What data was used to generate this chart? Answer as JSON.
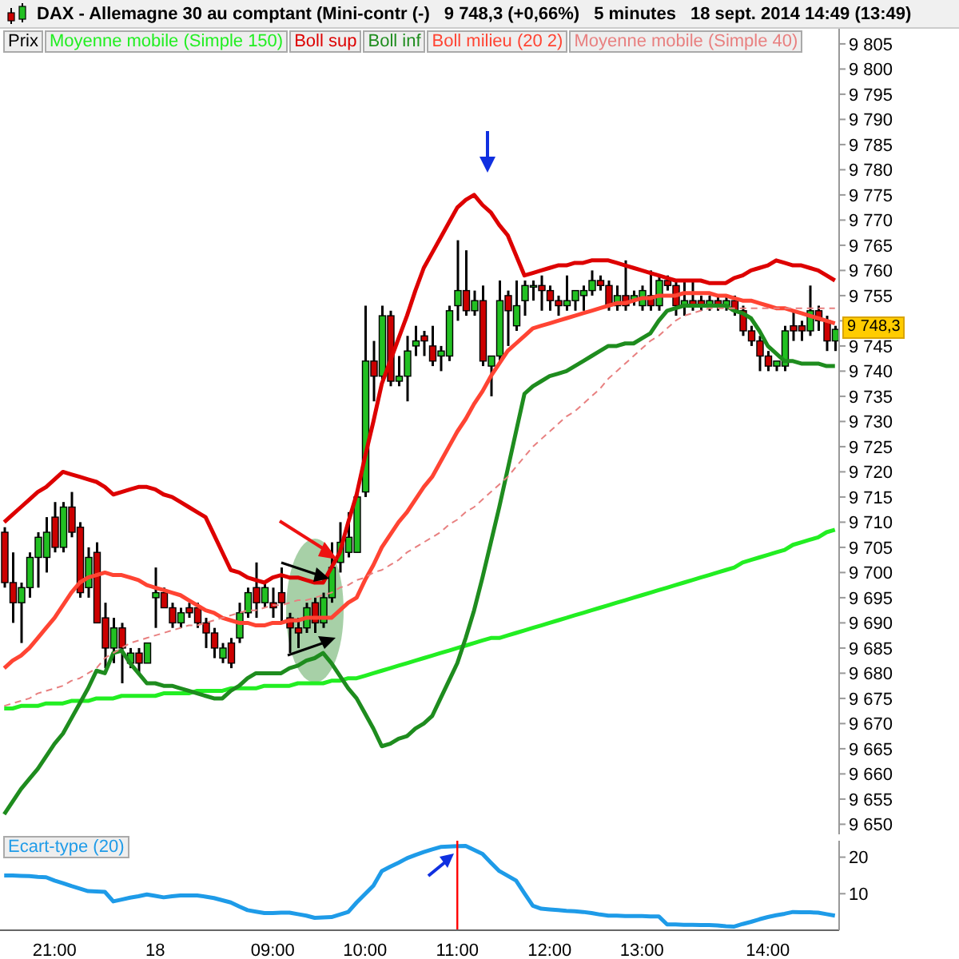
{
  "chart_data": [
    {
      "type": "candlestick",
      "title": "DAX - Allemagne 30 au comptant (Mini-contr (-)",
      "subtitle": "9 748,3 (+0,66%)",
      "annotations": [
        "5 minutes",
        "18 sept. 2014 14:49 (13:49)",
        {
          "text": "9 748,3",
          "y": 9748.3
        }
      ],
      "legend": "top left",
      "categories": [
        null,
        null,
        null,
        null,
        null,
        null,
        null,
        null,
        null,
        null,
        null,
        null,
        null,
        null,
        null,
        null,
        null,
        null,
        null,
        null,
        null,
        null,
        null,
        null,
        null,
        null,
        null,
        null,
        null,
        null,
        null,
        null,
        null,
        null,
        null,
        null,
        null,
        null,
        null,
        null,
        null,
        null,
        null,
        null,
        null,
        null,
        null,
        null,
        null,
        null,
        null,
        null,
        null,
        null,
        null,
        null,
        null,
        null,
        null,
        null,
        null,
        null,
        null,
        null,
        null,
        null,
        null,
        null,
        null,
        null,
        null,
        null,
        null,
        null,
        null,
        null,
        null,
        null,
        null,
        null,
        null,
        null,
        null,
        null,
        null,
        null,
        null,
        null,
        null,
        null,
        null,
        null,
        null,
        null,
        null,
        null,
        null,
        null,
        null,
        null
      ],
      "ylim": [
        9648,
        9808
      ],
      "yticks": [
        {
          "value": 9650,
          "label": "9 650"
        },
        {
          "value": 9655,
          "label": "9 655"
        },
        {
          "value": 9660,
          "label": "9 660"
        },
        {
          "value": 9665,
          "label": "9 665"
        },
        {
          "value": 9670,
          "label": "9 670"
        },
        {
          "value": 9675,
          "label": "9 675"
        },
        {
          "value": 9680,
          "label": "9 680"
        },
        {
          "value": 9685,
          "label": "9 685"
        },
        {
          "value": 9690,
          "label": "9 690"
        },
        {
          "value": 9695,
          "label": "9 695"
        },
        {
          "value": 9700,
          "label": "9 700"
        },
        {
          "value": 9705,
          "label": "9 705"
        },
        {
          "value": 9710,
          "label": "9 710"
        },
        {
          "value": 9715,
          "label": "9 715"
        },
        {
          "value": 9720,
          "label": "9 720"
        },
        {
          "value": 9725,
          "label": "9 725"
        },
        {
          "value": 9730,
          "label": "9 730"
        },
        {
          "value": 9735,
          "label": "9 735"
        },
        {
          "value": 9740,
          "label": "9 740"
        },
        {
          "value": 9745,
          "label": "9 745"
        },
        {
          "value": 9750,
          "label": null
        },
        {
          "value": 9755,
          "label": "9 755"
        },
        {
          "value": 9760,
          "label": "9 760"
        },
        {
          "value": 9765,
          "label": "9 765"
        },
        {
          "value": 9770,
          "label": "9 770"
        },
        {
          "value": 9775,
          "label": "9 775"
        },
        {
          "value": 9780,
          "label": "9 780"
        },
        {
          "value": 9785,
          "label": "9 785"
        },
        {
          "value": 9790,
          "label": "9 790"
        },
        {
          "value": 9795,
          "label": "9 795"
        },
        {
          "value": 9800,
          "label": "9 800"
        },
        {
          "value": 9805,
          "label": "9 805"
        }
      ],
      "series": [
        {
          "name": "Prix",
          "ohlc": [
            [
              9708,
              9709,
              9697,
              9698
            ],
            [
              9698,
              9704,
              9690,
              9694
            ],
            [
              9694,
              9698,
              9686,
              9697
            ],
            [
              9697,
              9704,
              9695,
              9703
            ],
            [
              9703,
              9708,
              9697,
              9707
            ],
            [
              9703,
              9711,
              9700,
              9708
            ],
            [
              9711,
              9714,
              9704,
              9705
            ],
            [
              9705,
              9714,
              9704,
              9713
            ],
            [
              9713,
              9716,
              9707,
              9708
            ],
            [
              9709,
              9710,
              9695,
              9696
            ],
            [
              9697,
              9705,
              9695,
              9703
            ],
            [
              9704,
              9706,
              9690,
              9690
            ],
            [
              9691,
              9694,
              9681,
              9685
            ],
            [
              9685,
              9691,
              9682,
              9689
            ],
            [
              9689,
              9690,
              9678,
              9685
            ],
            [
              9682,
              9685,
              9681,
              9684
            ],
            [
              9684,
              9685,
              9680,
              9682
            ],
            [
              9682,
              9686,
              9682,
              9686
            ],
            [
              9695,
              9701,
              9689,
              9696
            ],
            [
              9696,
              9697,
              9693,
              9693
            ],
            [
              9693,
              9694,
              9689,
              9690
            ],
            [
              9690,
              9693,
              9689,
              9692
            ],
            [
              9693,
              9694,
              9691,
              9692
            ],
            [
              9693,
              9694,
              9689,
              9690
            ],
            [
              9690,
              9691,
              9685,
              9688
            ],
            [
              9688,
              9689,
              9683,
              9685
            ],
            [
              9683,
              9686,
              9682,
              9685
            ],
            [
              9686,
              9687,
              9681,
              9682
            ],
            [
              9687,
              9694,
              9686,
              9692
            ],
            [
              9692,
              9697,
              9691,
              9696
            ],
            [
              9697,
              9702,
              9691,
              9694
            ],
            [
              9694,
              9698,
              9693,
              9697
            ],
            [
              9694,
              9697,
              9691,
              9693
            ],
            [
              9696,
              9701,
              9690,
              9694
            ],
            [
              9691,
              9692,
              9684,
              9689
            ],
            [
              9689,
              9691,
              9685,
              9688
            ],
            [
              9689,
              9694,
              9688,
              9693
            ],
            [
              9694,
              9695,
              9688,
              9690
            ],
            [
              9690,
              9696,
              9689,
              9695
            ],
            [
              9695,
              9706,
              9694,
              9701
            ],
            [
              9702,
              9710,
              9700,
              9706
            ],
            [
              9704,
              9712,
              9703,
              9707
            ],
            [
              9704,
              9716,
              9704,
              9715
            ],
            [
              9716,
              9753,
              9715,
              9742
            ],
            [
              9742,
              9746,
              9734,
              9739
            ],
            [
              9739,
              9753,
              9738,
              9751
            ],
            [
              9751,
              9752,
              9737,
              9738
            ],
            [
              9738,
              9743,
              9737,
              9739
            ],
            [
              9739,
              9747,
              9734,
              9744
            ],
            [
              9745,
              9749,
              9743,
              9746
            ],
            [
              9747,
              9748,
              9743,
              9746
            ],
            [
              9745,
              9749,
              9741,
              9742
            ],
            [
              9743,
              9745,
              9740,
              9744
            ],
            [
              9743,
              9753,
              9742,
              9752
            ],
            [
              9753,
              9766,
              9750,
              9756
            ],
            [
              9756,
              9764,
              9751,
              9752
            ],
            [
              9752,
              9756,
              9751,
              9754
            ],
            [
              9754,
              9757,
              9741,
              9742
            ],
            [
              9741,
              9743,
              9735,
              9743
            ],
            [
              9743,
              9758,
              9742,
              9754
            ],
            [
              9755,
              9756,
              9745,
              9752
            ],
            [
              9749,
              9758,
              9748,
              9753
            ],
            [
              9754,
              9758,
              9751,
              9757
            ],
            [
              9757,
              9758,
              9754,
              9757
            ],
            [
              9757,
              9759,
              9752,
              9756
            ],
            [
              9756,
              9757,
              9752,
              9754
            ],
            [
              9754,
              9755,
              9751,
              9753
            ],
            [
              9753,
              9759,
              9752,
              9754
            ],
            [
              9754,
              9756,
              9752,
              9756
            ],
            [
              9755,
              9757,
              9752,
              9756
            ],
            [
              9756,
              9760,
              9755,
              9758
            ],
            [
              9758,
              9759,
              9756,
              9757
            ],
            [
              9757,
              9758,
              9752,
              9753
            ],
            [
              9753,
              9757,
              9752,
              9755
            ],
            [
              9755,
              9762,
              9752,
              9753
            ],
            [
              9754,
              9756,
              9753,
              9755
            ],
            [
              9753,
              9757,
              9752,
              9756
            ],
            [
              9755,
              9760,
              9752,
              9753
            ],
            [
              9753,
              9759,
              9752,
              9758
            ],
            [
              9758,
              9759,
              9756,
              9757
            ],
            [
              9757,
              9758,
              9751,
              9753
            ],
            [
              9753,
              9758,
              9751,
              9754
            ],
            [
              9754,
              9758,
              9752,
              9753
            ],
            [
              9754,
              9755,
              9752,
              9753
            ],
            [
              9753,
              9755,
              9752,
              9754
            ],
            [
              9754,
              9755,
              9752,
              9753
            ],
            [
              9753,
              9755,
              9752,
              9754
            ],
            [
              9754,
              9755,
              9751,
              9752
            ],
            [
              9752,
              9753,
              9747,
              9748
            ],
            [
              9748,
              9749,
              9745,
              9746
            ],
            [
              9746,
              9747,
              9740,
              9743
            ],
            [
              9743,
              9744,
              9740,
              9741
            ],
            [
              9741,
              9742,
              9740,
              9742
            ],
            [
              9741,
              9749,
              9740,
              9748
            ],
            [
              9749,
              9752,
              9746,
              9748
            ],
            [
              9749,
              9750,
              9746,
              9748
            ],
            [
              9748,
              9757,
              9747,
              9752
            ],
            [
              9752,
              9753,
              9748,
              9750
            ],
            [
              9750,
              9751,
              9744,
              9746
            ],
            [
              9746,
              9749,
              9744,
              9748.3
            ]
          ]
        },
        {
          "name": "Moyenne mobile (Simple 150)",
          "type": "line",
          "color": "#22ee22",
          "values": [
            9673,
            9673,
            9673.5,
            9673.5,
            9673.5,
            9674,
            9674,
            9674,
            9674.5,
            9674.5,
            9674.5,
            9675,
            9675,
            9675,
            9675.5,
            9675.5,
            9675.5,
            9675.5,
            9675.5,
            9676,
            9676,
            9676,
            9676,
            9676.5,
            9676.5,
            9676.5,
            9676.5,
            9677,
            9677,
            9677,
            9677,
            9677.5,
            9677.5,
            9677.5,
            9677.5,
            9678,
            9678,
            9678,
            9678,
            9678.5,
            9678.5,
            9679,
            9679,
            9679.5,
            9680,
            9680.5,
            9681,
            9681.5,
            9682,
            9682.5,
            9683,
            9683.5,
            9684,
            9684.5,
            9685,
            9685.5,
            9686,
            9686.5,
            9687,
            9687,
            9687.5,
            9688,
            9688.5,
            9689,
            9689.5,
            9690,
            9690.5,
            9691,
            9691.5,
            9692,
            9692.5,
            9693,
            9693.5,
            9694,
            9694.5,
            9695,
            9695.5,
            9696,
            9696.5,
            9697,
            9697.5,
            9698,
            9698.5,
            9699,
            9699.5,
            9700,
            9700.5,
            9701,
            9702,
            9702.5,
            9703,
            9703.5,
            9704,
            9704.5,
            9705.5,
            9706,
            9706.5,
            9707,
            9708,
            9708.5
          ]
        },
        {
          "name": "Boll sup",
          "type": "line",
          "color": "#dd0000",
          "values": [
            9710,
            9711.5,
            9713,
            9714.5,
            9716,
            9717,
            9718.5,
            9720,
            9719.5,
            9719,
            9718.5,
            9718,
            9717,
            9715.5,
            9716,
            9716.5,
            9717,
            9717,
            9716.5,
            9715.5,
            9715,
            9714,
            9713,
            9712,
            9711,
            9707.5,
            9704,
            9700.5,
            9700,
            9699,
            9698.5,
            9698,
            9699,
            9699.5,
            9699,
            9699,
            9698.5,
            9698,
            9698,
            9701,
            9704,
            9710,
            9715.5,
            9723,
            9730,
            9737.5,
            9742,
            9746.5,
            9751,
            9756,
            9760.5,
            9763.5,
            9766.5,
            9769.5,
            9772.5,
            9774,
            9775,
            9773,
            9771.5,
            9769,
            9767,
            9763,
            9759,
            9759.5,
            9760,
            9760.5,
            9761,
            9761,
            9761.5,
            9761.5,
            9762,
            9762,
            9762,
            9761.5,
            9761,
            9760.5,
            9760,
            9759.5,
            9759,
            9758.5,
            9758,
            9758,
            9758,
            9758,
            9757.5,
            9757.5,
            9757.5,
            9758.5,
            9759,
            9760,
            9760.5,
            9761,
            9762,
            9761.5,
            9761,
            9761,
            9760.5,
            9760,
            9759,
            9758
          ]
        },
        {
          "name": "Boll inf",
          "type": "line",
          "color": "#1e8c1e",
          "values": [
            9652,
            9654.5,
            9657,
            9659,
            9661,
            9663.5,
            9666,
            9668,
            9671,
            9674,
            9677,
            9680.5,
            9680,
            9684,
            9684.5,
            9682,
            9680,
            9678,
            9678,
            9677.5,
            9677.5,
            9677,
            9676.5,
            9676,
            9675.5,
            9675,
            9675,
            9676.5,
            9677.5,
            9679,
            9680,
            9680,
            9680,
            9680,
            9681,
            9681.5,
            9682.5,
            9683,
            9684,
            9682,
            9679.5,
            9677,
            9675,
            9672,
            9669,
            9665.5,
            9666,
            9667,
            9667.5,
            9669,
            9670,
            9671.5,
            9675,
            9678.5,
            9682,
            9687,
            9692.5,
            9699,
            9706,
            9713,
            9720.5,
            9728,
            9735.5,
            9737,
            9738,
            9739,
            9739.5,
            9740,
            9741,
            9742,
            9743,
            9744,
            9745,
            9745,
            9745.5,
            9745.5,
            9746.5,
            9747.5,
            9750,
            9752,
            9752.5,
            9753,
            9753,
            9753,
            9753,
            9753,
            9753,
            9752,
            9751.5,
            9750.5,
            9748,
            9745,
            9743.5,
            9742,
            9742,
            9741.5,
            9741.5,
            9741.5,
            9741,
            9741
          ]
        },
        {
          "name": "Boll milieu (20 2)",
          "type": "line",
          "color": "#ff4433",
          "values": [
            9681,
            9682.5,
            9683.5,
            9685,
            9687,
            9689,
            9691,
            9693.5,
            9696,
            9698,
            9699,
            9699.5,
            9700,
            9699.5,
            9699.5,
            9699,
            9698.5,
            9697.5,
            9697,
            9696.5,
            9696,
            9695.5,
            9694.5,
            9693.5,
            9692.5,
            9692,
            9691,
            9690.5,
            9690,
            9690,
            9689.5,
            9689.5,
            9690,
            9690,
            9690.5,
            9690.5,
            9691,
            9691,
            9691,
            9691,
            9692.5,
            9694,
            9695,
            9698.5,
            9701.5,
            9705,
            9707.5,
            9710,
            9712,
            9714.5,
            9717,
            9719,
            9722,
            9725,
            9728,
            9730.5,
            9733.5,
            9736,
            9739,
            9741.5,
            9744,
            9745.5,
            9747,
            9748.5,
            9749,
            9749.5,
            9750,
            9750.5,
            9751,
            9751.5,
            9752,
            9752.5,
            9753,
            9753.5,
            9753.5,
            9754,
            9754.5,
            9754.5,
            9755,
            9755,
            9755,
            9755.5,
            9755.5,
            9755.5,
            9755.5,
            9755,
            9755,
            9754.5,
            9754,
            9754,
            9753.5,
            9753,
            9752.5,
            9752.5,
            9752,
            9751.5,
            9751,
            9750.5,
            9750,
            9749.5
          ]
        },
        {
          "name": "Moyenne mobile (Simple 40)",
          "type": "line",
          "color": "#e88080",
          "line_style": "dashed",
          "values": [
            9673.5,
            9674,
            9674.5,
            9675,
            9676,
            9676.5,
            9677,
            9677.5,
            9678.5,
            9679,
            9680,
            9681,
            9683,
            9684,
            9685,
            9686,
            9686.5,
            9687,
            9687.5,
            9688,
            9688.5,
            9689,
            9689.5,
            9689.5,
            9690,
            9690.5,
            9691,
            9691.5,
            9692,
            9692.5,
            9692.5,
            9693,
            9693.5,
            9693.5,
            9694,
            9694.5,
            9694.5,
            9695,
            9695.5,
            9696,
            9697,
            9697.5,
            9698.5,
            9699,
            9700,
            9700.5,
            9701.5,
            9702.5,
            9704,
            9705,
            9706,
            9707,
            9708,
            9709.5,
            9710.5,
            9712,
            9713,
            9714.5,
            9716,
            9717.5,
            9719,
            9721,
            9723,
            9725,
            9726.5,
            9728,
            9729.5,
            9731,
            9732,
            9733.5,
            9735,
            9736.5,
            9738.5,
            9740,
            9741.5,
            9743,
            9744.5,
            9746,
            9747,
            9748.5,
            9750,
            9751,
            9751.5,
            9752,
            9752.5,
            9752.5,
            9752.5,
            9752.5,
            9752.5,
            9752.5,
            9752.5,
            9752.5,
            9752.5,
            9752.5,
            9752.5,
            9752.5,
            9752.5,
            9752.5,
            9752.5,
            9752.5
          ]
        }
      ]
    },
    {
      "type": "line",
      "legend": "top left",
      "categories": [
        null,
        null,
        null,
        null,
        null,
        null,
        "21:00",
        null,
        null,
        null,
        null,
        null,
        null,
        null,
        null,
        null,
        null,
        null,
        "18",
        null,
        null,
        null,
        null,
        null,
        null,
        null,
        null,
        null,
        null,
        null,
        null,
        null,
        "09:00",
        null,
        null,
        null,
        null,
        null,
        null,
        null,
        null,
        null,
        null,
        "10:00",
        null,
        null,
        null,
        null,
        null,
        null,
        null,
        null,
        null,
        null,
        "11:00",
        null,
        null,
        null,
        null,
        null,
        null,
        null,
        null,
        null,
        null,
        "12:00",
        null,
        null,
        null,
        null,
        null,
        null,
        null,
        null,
        null,
        null,
        "13:00",
        null,
        null,
        null,
        null,
        null,
        null,
        null,
        null,
        null,
        null,
        null,
        null,
        null,
        null,
        "14:00",
        null,
        null,
        null,
        null,
        null,
        null,
        null,
        null
      ],
      "ylim": [
        0,
        24.5
      ],
      "yticks": [
        10,
        20
      ],
      "ref_lines": [
        {
          "axis": "x",
          "value": "11:00",
          "color": "#ff0000"
        }
      ],
      "series": [
        {
          "name": "Ecart-type (20)",
          "color": "#1e9be8",
          "values": [
            15,
            15,
            14.9,
            14.8,
            14.6,
            14.5,
            13.6,
            12.9,
            12.1,
            11.4,
            10.7,
            10.6,
            10.5,
            7.9,
            8.4,
            8.9,
            9.3,
            9.8,
            9.4,
            9,
            9.3,
            9.5,
            9.5,
            9.5,
            9.2,
            8.8,
            8.2,
            7.6,
            6.5,
            5.5,
            5.1,
            4.7,
            4.7,
            4.8,
            4.8,
            4.4,
            4,
            3.4,
            3.5,
            3.6,
            4.3,
            5,
            7.6,
            9.9,
            12.2,
            16.2,
            17.4,
            18.5,
            19.7,
            20.6,
            21.4,
            22.1,
            22.8,
            22.9,
            23,
            23.1,
            22,
            20.9,
            18.5,
            16.2,
            14.9,
            13.6,
            10.1,
            6.7,
            5.9,
            5.7,
            5.5,
            5.3,
            5.2,
            5,
            4.7,
            4.3,
            4,
            4,
            3.9,
            3.9,
            3.9,
            3.8,
            3.8,
            1.6,
            1.6,
            1.5,
            1.5,
            1.4,
            1.4,
            1.3,
            1.1,
            1,
            1.7,
            2.3,
            3,
            3.6,
            4.1,
            4.5,
            5,
            4.9,
            4.9,
            4.8,
            4.4,
            4
          ]
        }
      ]
    }
  ]
}
